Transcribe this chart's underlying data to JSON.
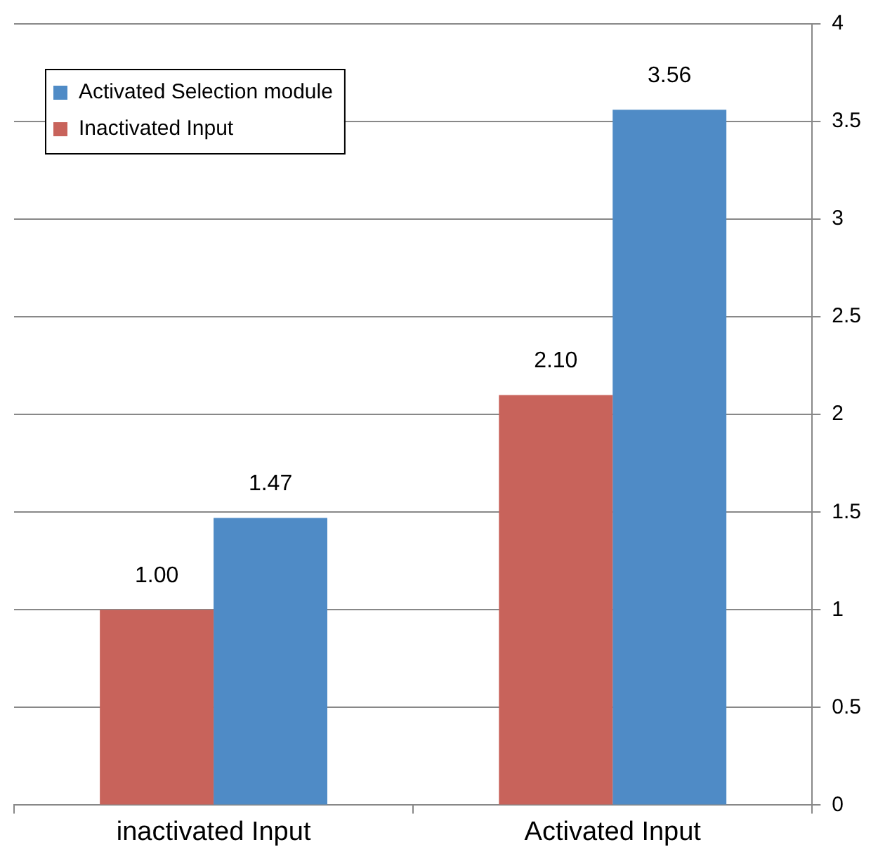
{
  "chart_data": {
    "type": "bar",
    "categories": [
      "inactivated Input",
      "Activated Input"
    ],
    "series": [
      {
        "name": "Inactivated Input",
        "color": "#c8635b",
        "values": [
          1.0,
          2.1
        ],
        "value_labels": [
          "1.00",
          "2.10"
        ]
      },
      {
        "name": "Activated Selection module",
        "color": "#4f8bc6",
        "values": [
          1.47,
          3.56
        ],
        "value_labels": [
          "1.47",
          "3.56"
        ]
      }
    ],
    "ylim": [
      0,
      4
    ],
    "yticks": [
      0,
      0.5,
      1,
      1.5,
      2,
      2.5,
      3,
      3.5,
      4
    ],
    "grid": "y",
    "legend": "top left"
  }
}
